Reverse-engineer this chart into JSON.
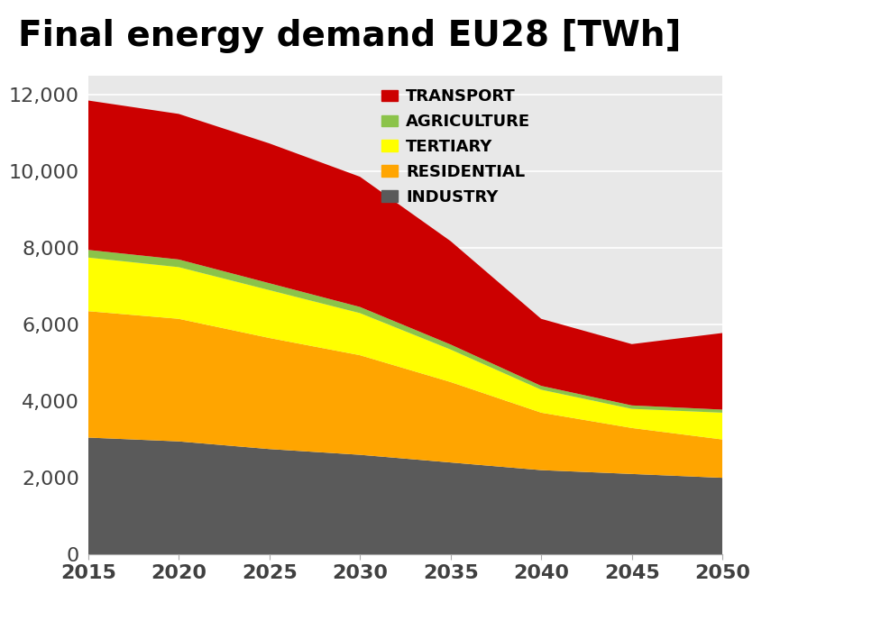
{
  "title": "Final energy demand EU28 [TWh]",
  "years": [
    2015,
    2020,
    2025,
    2030,
    2035,
    2040,
    2045,
    2050
  ],
  "industry": [
    3050,
    2950,
    2750,
    2600,
    2400,
    2200,
    2100,
    2000
  ],
  "residential": [
    3300,
    3200,
    2900,
    2600,
    2100,
    1500,
    1200,
    1000
  ],
  "tertiary": [
    1400,
    1350,
    1250,
    1100,
    850,
    600,
    500,
    700
  ],
  "agriculture": [
    200,
    200,
    180,
    160,
    130,
    100,
    90,
    80
  ],
  "transport": [
    3900,
    3800,
    3650,
    3400,
    2700,
    1750,
    1600,
    2000
  ],
  "colors": {
    "industry": "#5a5a5a",
    "residential": "#FFA500",
    "tertiary": "#FFFF00",
    "agriculture": "#8BC34A",
    "transport": "#CC0000"
  },
  "legend_labels": {
    "transport": "TRANSPORT",
    "agriculture": "AGRICULTURE",
    "tertiary": "TERTIARY",
    "residential": "RESIDENTIAL",
    "industry": "INDUSTRY"
  },
  "ylim": [
    0,
    12500
  ],
  "yticks": [
    0,
    2000,
    4000,
    6000,
    8000,
    10000,
    12000
  ],
  "background_color": "#ffffff",
  "plot_bg_color": "#e8e8e8",
  "title_fontsize": 28,
  "legend_fontsize": 13,
  "tick_fontsize": 16
}
